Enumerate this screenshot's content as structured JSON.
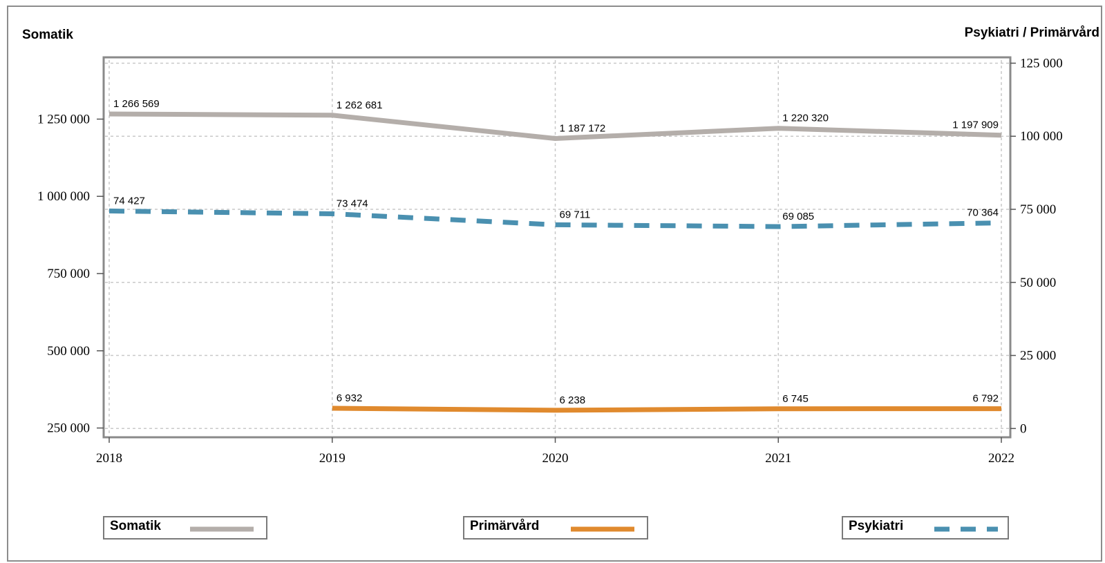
{
  "chart_data": {
    "type": "line",
    "x": [
      "2018",
      "2019",
      "2020",
      "2021",
      "2022"
    ],
    "left_axis": {
      "title": "Somatik",
      "ticks": [
        250000,
        500000,
        750000,
        1000000,
        1250000
      ],
      "tick_labels": [
        "250 000",
        "500 000",
        "750 000",
        "1 000 000",
        "1 250 000"
      ],
      "range": [
        220000,
        1450000
      ]
    },
    "right_axis": {
      "title": "Psykiatri / Primärvård",
      "ticks": [
        0,
        25000,
        50000,
        75000,
        100000,
        125000
      ],
      "tick_labels": [
        "0",
        "25 000",
        "50 000",
        "75 000",
        "100 000",
        "125 000"
      ],
      "range": [
        -3000,
        127000
      ]
    },
    "grid": true,
    "series": [
      {
        "name": "Somatik",
        "axis": "left",
        "color": "#b4aeaa",
        "style": "solid",
        "x": [
          "2018",
          "2019",
          "2020",
          "2021",
          "2022"
        ],
        "values": [
          1266569,
          1262681,
          1187172,
          1220320,
          1197909
        ],
        "labels": [
          "1 266 569",
          "1 262 681",
          "1 187 172",
          "1 220 320",
          "1 197 909"
        ]
      },
      {
        "name": "Primärvård",
        "axis": "right",
        "color": "#e08a2e",
        "style": "solid",
        "x": [
          "2019",
          "2020",
          "2021",
          "2022"
        ],
        "values": [
          6932,
          6238,
          6745,
          6792
        ],
        "labels": [
          "6 932",
          "6 238",
          "6 745",
          "6 792"
        ]
      },
      {
        "name": "Psykiatri",
        "axis": "right",
        "color": "#4a90b0",
        "style": "dashed",
        "x": [
          "2018",
          "2019",
          "2020",
          "2021",
          "2022"
        ],
        "values": [
          74427,
          73474,
          69711,
          69085,
          70364
        ],
        "labels": [
          "74 427",
          "73 474",
          "69 711",
          "69 085",
          "70 364"
        ]
      }
    ],
    "legend": {
      "position": "bottom",
      "items": [
        "Somatik",
        "Primärvård",
        "Psykiatri"
      ]
    }
  }
}
